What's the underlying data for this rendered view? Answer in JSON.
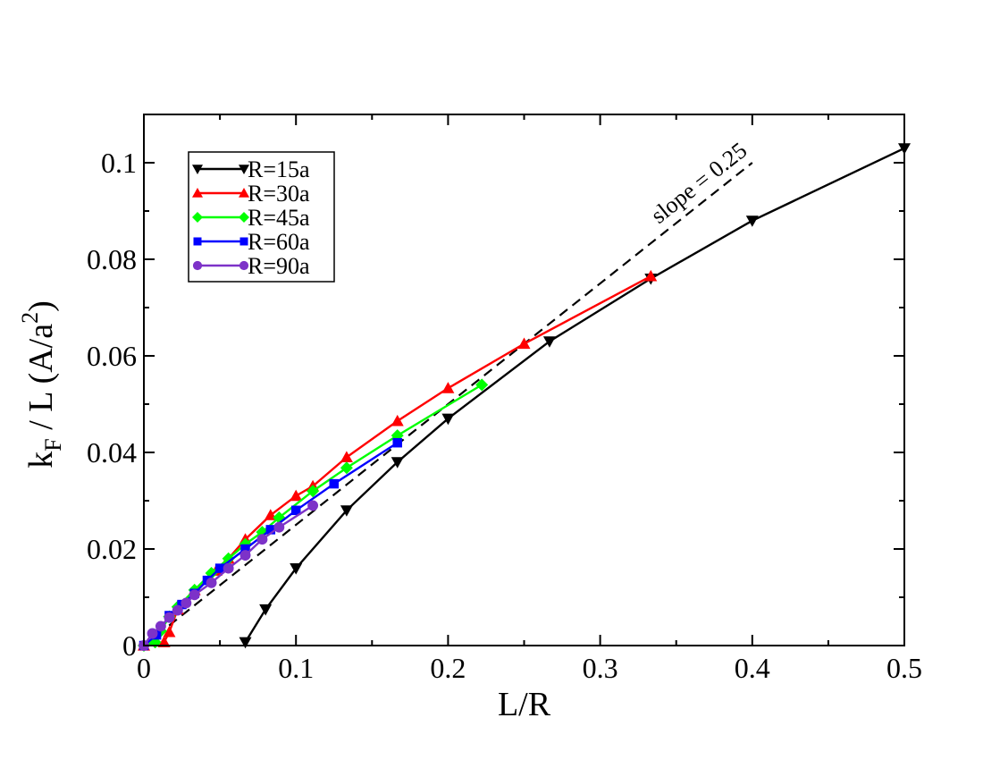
{
  "chart_data": {
    "type": "line",
    "title": "",
    "xlabel": "L/R",
    "ylabel_parts": {
      "k": "k",
      "sub": "F",
      "mid": " / L (A/a",
      "sup": "2",
      "end": ")"
    },
    "xlim": [
      0,
      0.5
    ],
    "ylim": [
      0,
      0.11
    ],
    "xticks": [
      0,
      0.1,
      0.2,
      0.3,
      0.4,
      0.5
    ],
    "xtick_labels": [
      "0",
      "0.1",
      "0.2",
      "0.3",
      "0.4",
      "0.5"
    ],
    "yticks": [
      0,
      0.02,
      0.04,
      0.06,
      0.08,
      0.1
    ],
    "ytick_labels": [
      "0",
      "0.02",
      "0.04",
      "0.06",
      "0.08",
      "0.1"
    ],
    "grid": false,
    "legend_position": "top-left",
    "series": [
      {
        "name": "R=15a",
        "color": "#000000",
        "marker": "triangle-down",
        "x": [
          0.0667,
          0.08,
          0.1,
          0.1333,
          0.1667,
          0.2,
          0.2667,
          0.3333,
          0.4,
          0.5
        ],
        "y": [
          0.0007,
          0.0075,
          0.016,
          0.028,
          0.038,
          0.047,
          0.063,
          0.076,
          0.088,
          0.103
        ]
      },
      {
        "name": "R=30a",
        "color": "#ff0000",
        "marker": "triangle-up",
        "x": [
          0.0,
          0.0133,
          0.0167,
          0.0222,
          0.0333,
          0.0476,
          0.0556,
          0.0667,
          0.0833,
          0.1,
          0.1111,
          0.1333,
          0.1667,
          0.2,
          0.25,
          0.3333
        ],
        "y": [
          0.0,
          0.0007,
          0.0028,
          0.0075,
          0.0115,
          0.0155,
          0.018,
          0.022,
          0.027,
          0.031,
          0.033,
          0.039,
          0.0465,
          0.0533,
          0.0625,
          0.0765
        ]
      },
      {
        "name": "R=45a",
        "color": "#00ff00",
        "marker": "diamond",
        "x": [
          0.0,
          0.0074,
          0.0111,
          0.0167,
          0.0222,
          0.0333,
          0.0444,
          0.0556,
          0.0667,
          0.0778,
          0.0889,
          0.1111,
          0.1333,
          0.1667,
          0.2222
        ],
        "y": [
          0.0,
          0.0007,
          0.003,
          0.006,
          0.008,
          0.0115,
          0.015,
          0.018,
          0.021,
          0.0235,
          0.0265,
          0.032,
          0.0368,
          0.0435,
          0.054
        ]
      },
      {
        "name": "R=60a",
        "color": "#0000ff",
        "marker": "square",
        "x": [
          0.0,
          0.0083,
          0.0167,
          0.025,
          0.0333,
          0.0417,
          0.05,
          0.0667,
          0.0833,
          0.1,
          0.125,
          0.1667
        ],
        "y": [
          0.0,
          0.0022,
          0.0062,
          0.0085,
          0.0108,
          0.0135,
          0.016,
          0.02,
          0.024,
          0.028,
          0.0335,
          0.042
        ]
      },
      {
        "name": "R=90a",
        "color": "#7d32c8",
        "marker": "circle",
        "x": [
          0.0,
          0.0056,
          0.0111,
          0.0167,
          0.0222,
          0.0278,
          0.0333,
          0.0444,
          0.0556,
          0.0667,
          0.0778,
          0.0889,
          0.1111
        ],
        "y": [
          0.0,
          0.0025,
          0.004,
          0.0058,
          0.0073,
          0.0088,
          0.0105,
          0.013,
          0.016,
          0.0187,
          0.022,
          0.0245,
          0.029
        ]
      }
    ],
    "reference_line": {
      "label": "slope = 0.25",
      "color": "#000000",
      "style": "dashed",
      "x": [
        0.0,
        0.4
      ],
      "y": [
        0.0,
        0.1
      ]
    }
  }
}
